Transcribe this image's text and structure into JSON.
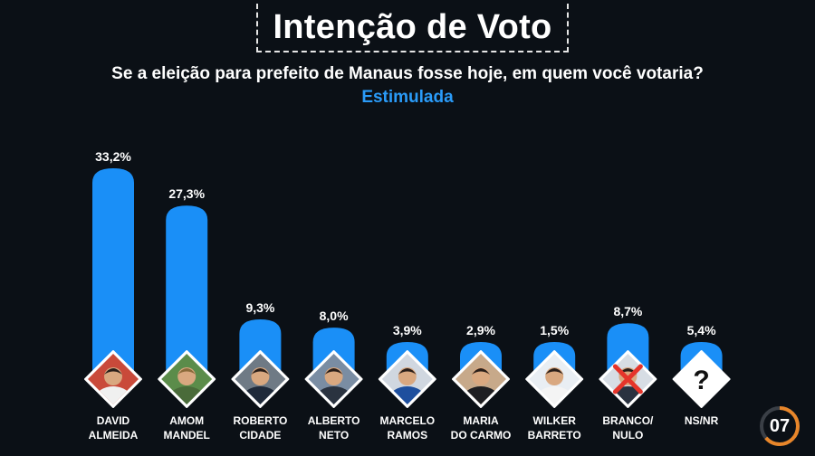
{
  "header": {
    "title": "Intenção de Voto",
    "subtitle": "Se a eleição para prefeito de Manaus fosse hoje, em quem você votaria?",
    "kind": "Estimulada"
  },
  "colors": {
    "bar": "#1a8ff7",
    "accent": "#2a9bf8",
    "background": "#0b1016",
    "badge_ring": "#e8862a"
  },
  "page_number": "07",
  "chart_data": {
    "type": "bar",
    "categories": [
      [
        "DAVID",
        "ALMEIDA"
      ],
      [
        "AMOM",
        "MANDEL"
      ],
      [
        "ROBERTO",
        "CIDADE"
      ],
      [
        "ALBERTO",
        "NETO"
      ],
      [
        "MARCELO",
        "RAMOS"
      ],
      [
        "MARIA",
        "DO CARMO"
      ],
      [
        "WILKER",
        "BARRETO"
      ],
      [
        "BRANCO/",
        "NULO"
      ],
      [
        "NS/NR"
      ]
    ],
    "values": [
      33.2,
      27.3,
      9.3,
      8.0,
      3.9,
      2.9,
      1.5,
      8.7,
      5.4
    ],
    "value_labels": [
      "33,2%",
      "27,3%",
      "9,3%",
      "8,0%",
      "3,9%",
      "2,9%",
      "1,5%",
      "8,7%",
      "5,4%"
    ],
    "icons": [
      "candidate-photo",
      "candidate-photo",
      "candidate-photo",
      "candidate-photo",
      "candidate-photo",
      "candidate-photo",
      "candidate-photo",
      "blank-vote-x-icon",
      "question-mark-icon"
    ],
    "unknown_symbol": "?",
    "ylim": [
      0,
      33.2
    ]
  }
}
